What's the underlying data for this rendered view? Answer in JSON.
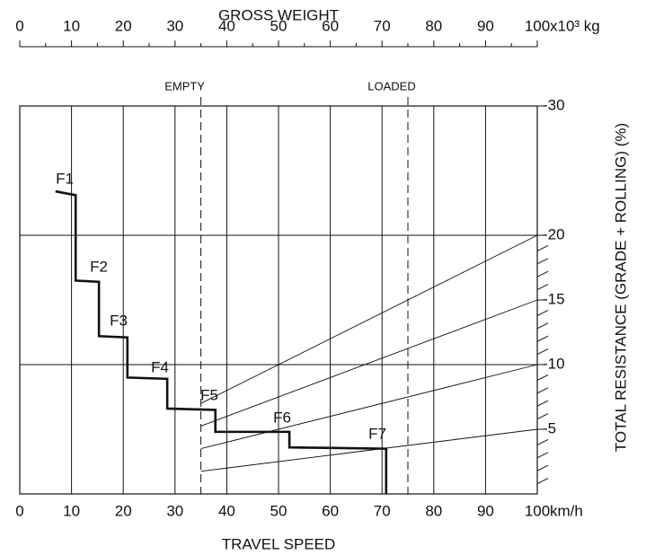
{
  "chart_data": {
    "type": "line",
    "title": "GROSS WEIGHT",
    "x2lim": [
      0,
      100
    ],
    "x2ticks": [
      0,
      10,
      20,
      30,
      40,
      50,
      60,
      70,
      80,
      90,
      100
    ],
    "x2_unit": "x10³ kg",
    "xlabel": "TRAVEL SPEED",
    "xlim": [
      0,
      100
    ],
    "xticks": [
      0,
      10,
      20,
      30,
      40,
      50,
      60,
      70,
      80,
      90,
      100
    ],
    "x_unit": "km/h",
    "ylabel": "TOTAL RESISTANCE (GRADE + ROLLING) (%)",
    "ylim": [
      0,
      -30
    ],
    "yticks": [
      -30,
      -20,
      -15,
      -10,
      -5
    ],
    "ygrid": [
      -20,
      -10
    ],
    "y_minor_ticks": [
      -1,
      -2,
      -3,
      -4,
      -6,
      -7,
      -8,
      -9,
      -11,
      -12,
      -13,
      -14,
      -16,
      -17,
      -18,
      -19
    ],
    "annotations": [
      {
        "text": "EMPTY",
        "x2": 35
      },
      {
        "text": "LOADED",
        "x2": 75
      }
    ],
    "resistance_lines": [
      -20,
      -15,
      -10,
      -5
    ],
    "series": [
      {
        "name": "gear",
        "color": "#111111",
        "x": [
          6.9,
          10.8,
          10.8,
          15.3,
          15.3,
          20.8,
          20.8,
          28.5,
          28.5,
          37.8,
          37.8,
          52.1,
          52.1,
          70.8,
          70.8
        ],
        "values": [
          -23.4,
          -23.1,
          -16.5,
          -16.4,
          -12.2,
          -12.1,
          -9.0,
          -8.9,
          -6.6,
          -6.5,
          -4.8,
          -4.8,
          -3.6,
          -3.5,
          0
        ]
      }
    ],
    "gear_labels": [
      "F1",
      "F2",
      "F3",
      "F4",
      "F5",
      "F6",
      "F7"
    ]
  }
}
